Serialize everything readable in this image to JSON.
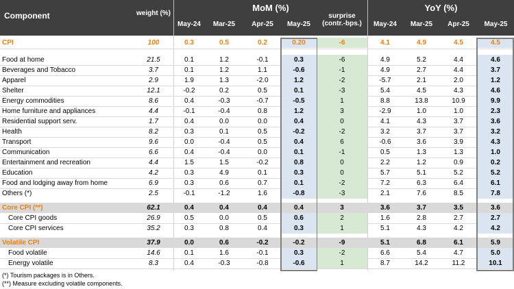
{
  "headers": {
    "component": "Component",
    "weight": "weight (%)",
    "mom": "MoM (%)",
    "yoy": "YoY (%)",
    "mom_cols": [
      "May-24",
      "Mar-25",
      "Apr-25",
      "May-25"
    ],
    "surprise": "surprise (contr.-bps.)",
    "yoy_cols": [
      "May-24",
      "Mar-25",
      "Apr-25",
      "May-25"
    ]
  },
  "colors": {
    "header_bg": "#3f3f3f",
    "highlight": "#f07f09",
    "blue_cell": "#dbe5f1",
    "green_cell": "#d8e9d3",
    "grey_band": "#d9d9d9"
  },
  "rows": [
    {
      "label": "CPI",
      "weight": "100",
      "mom": [
        "0.3",
        "0.5",
        "0.2",
        "0.20"
      ],
      "surprise": "-6",
      "yoy": [
        "4.1",
        "4.9",
        "4.5",
        "4.5"
      ],
      "style": "cpi"
    },
    {
      "label": "Food at home",
      "weight": "21.5",
      "mom": [
        "0.1",
        "1.2",
        "-0.1",
        "0.3"
      ],
      "surprise": "-6",
      "yoy": [
        "4.9",
        "5.2",
        "4.4",
        "4.6"
      ]
    },
    {
      "label": "Beverages and Tobacco",
      "weight": "3.7",
      "mom": [
        "0.1",
        "1.2",
        "1.1",
        "-0.6"
      ],
      "surprise": "-1",
      "yoy": [
        "4.9",
        "2.7",
        "4.4",
        "3.7"
      ]
    },
    {
      "label": "Apparel",
      "weight": "2.9",
      "mom": [
        "1.9",
        "1.3",
        "-2.0",
        "1.2"
      ],
      "surprise": "-2",
      "yoy": [
        "-5.7",
        "2.1",
        "2.0",
        "1.2"
      ]
    },
    {
      "label": "Shelter",
      "weight": "12.1",
      "mom": [
        "-0.2",
        "0.2",
        "0.5",
        "0.1"
      ],
      "surprise": "-3",
      "yoy": [
        "5.4",
        "4.5",
        "4.3",
        "4.6"
      ]
    },
    {
      "label": "Energy commodities",
      "weight": "8.6",
      "mom": [
        "0.4",
        "-0.3",
        "-0.7",
        "-0.5"
      ],
      "surprise": "1",
      "yoy": [
        "8.8",
        "13.8",
        "10.9",
        "9.9"
      ]
    },
    {
      "label": "Home furniture and appliances",
      "weight": "4.4",
      "mom": [
        "-0.1",
        "-0.4",
        "0.8",
        "1.2"
      ],
      "surprise": "3",
      "yoy": [
        "-2.9",
        "1.0",
        "1.0",
        "2.3"
      ]
    },
    {
      "label": "Residential support serv.",
      "weight": "1.7",
      "mom": [
        "0.4",
        "0.0",
        "0.0",
        "0.4"
      ],
      "surprise": "0",
      "yoy": [
        "4.1",
        "4.3",
        "3.7",
        "3.6"
      ]
    },
    {
      "label": "Health",
      "weight": "8.2",
      "mom": [
        "0.3",
        "0.1",
        "0.5",
        "-0.2"
      ],
      "surprise": "-2",
      "yoy": [
        "3.2",
        "3.7",
        "3.7",
        "3.2"
      ]
    },
    {
      "label": "Transport",
      "weight": "9.6",
      "mom": [
        "0.0",
        "-0.4",
        "0.5",
        "0.4"
      ],
      "surprise": "6",
      "yoy": [
        "-0.6",
        "3.6",
        "3.9",
        "4.3"
      ]
    },
    {
      "label": "Communication",
      "weight": "6.6",
      "mom": [
        "0.4",
        "-0.4",
        "0.0",
        "0.1"
      ],
      "surprise": "-1",
      "yoy": [
        "0.5",
        "1.3",
        "1.3",
        "1.0"
      ]
    },
    {
      "label": "Entertainment and recreation",
      "weight": "4.4",
      "mom": [
        "1.5",
        "1.5",
        "-0.2",
        "0.8"
      ],
      "surprise": "0",
      "yoy": [
        "2.2",
        "1.2",
        "0.9",
        "0.2"
      ]
    },
    {
      "label": "Education",
      "weight": "4.2",
      "mom": [
        "0.3",
        "4.9",
        "0.1",
        "0.3"
      ],
      "surprise": "0",
      "yoy": [
        "5.7",
        "5.1",
        "5.2",
        "5.2"
      ]
    },
    {
      "label": "Food and lodging away from home",
      "weight": "6.9",
      "mom": [
        "0.3",
        "0.6",
        "0.7",
        "0.1"
      ],
      "surprise": "-2",
      "yoy": [
        "7.2",
        "6.3",
        "6.4",
        "6.1"
      ]
    },
    {
      "label": "Others (*)",
      "weight": "2.5",
      "mom": [
        "-0.1",
        "-1.2",
        "1.6",
        "-0.8"
      ],
      "surprise": "-3",
      "yoy": [
        "2.1",
        "7.6",
        "8.5",
        "7.8"
      ]
    },
    {
      "label": "Core CPI (**)",
      "weight": "62.1",
      "mom": [
        "0.4",
        "0.4",
        "0.4",
        "0.4"
      ],
      "surprise": "3",
      "yoy": [
        "3.6",
        "3.7",
        "3.5",
        "3.6"
      ],
      "style": "group"
    },
    {
      "label": "Core CPI goods",
      "weight": "26.9",
      "mom": [
        "0.5",
        "0.0",
        "0.5",
        "0.6"
      ],
      "surprise": "2",
      "yoy": [
        "1.6",
        "2.8",
        "2.7",
        "2.7"
      ],
      "style": "sub"
    },
    {
      "label": "Core CPI services",
      "weight": "35.2",
      "mom": [
        "0.3",
        "0.8",
        "0.4",
        "0.3"
      ],
      "surprise": "1",
      "yoy": [
        "5.1",
        "4.3",
        "4.2",
        "4.2"
      ],
      "style": "sub"
    },
    {
      "label": "Volatile CPI",
      "weight": "37.9",
      "mom": [
        "0.0",
        "0.6",
        "-0.2",
        "-0.2"
      ],
      "surprise": "-9",
      "yoy": [
        "5.1",
        "6.8",
        "6.1",
        "5.9"
      ],
      "style": "group"
    },
    {
      "label": "Food volatile",
      "weight": "14.6",
      "mom": [
        "0.1",
        "1.6",
        "-0.1",
        "0.3"
      ],
      "surprise": "-2",
      "yoy": [
        "6.6",
        "5.4",
        "4.7",
        "5.0"
      ],
      "style": "sub"
    },
    {
      "label": "Energy volatile",
      "weight": "8.3",
      "mom": [
        "0.4",
        "-0.3",
        "-0.8",
        "-0.6"
      ],
      "surprise": "1",
      "yoy": [
        "8.7",
        "14.2",
        "11.2",
        "10.1"
      ],
      "style": "sub"
    }
  ],
  "footnotes": [
    "(*) Tourism packages is in Others.",
    "(**) Measure excluding volatile components."
  ]
}
